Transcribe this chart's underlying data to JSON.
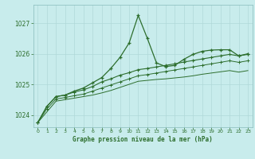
{
  "title": "Graphe pression niveau de la mer (hPa)",
  "bg_color": "#c8ecec",
  "grid_color": "#b0d8d8",
  "line_color": "#2d6e2d",
  "xlim": [
    -0.5,
    23.5
  ],
  "ylim": [
    1023.6,
    1027.6
  ],
  "yticks": [
    1024,
    1025,
    1026,
    1027
  ],
  "xticks": [
    0,
    1,
    2,
    3,
    4,
    5,
    6,
    7,
    8,
    9,
    10,
    11,
    12,
    13,
    14,
    15,
    16,
    17,
    18,
    19,
    20,
    21,
    22,
    23
  ],
  "line1_x": [
    0,
    1,
    2,
    3,
    4,
    5,
    6,
    7,
    8,
    9,
    10,
    11,
    12,
    13,
    14,
    15,
    16,
    17,
    18,
    19,
    20,
    21,
    22,
    23
  ],
  "line1_y": [
    1023.75,
    1024.28,
    1024.6,
    1024.65,
    1024.78,
    1024.88,
    1025.05,
    1025.22,
    1025.52,
    1025.88,
    1026.35,
    1027.25,
    1026.5,
    1025.7,
    1025.58,
    1025.62,
    1025.82,
    1025.98,
    1026.08,
    1026.12,
    1026.13,
    1026.13,
    1025.93,
    1026.0
  ],
  "line2_x": [
    0,
    1,
    2,
    3,
    4,
    5,
    6,
    7,
    8,
    9,
    10,
    11,
    12,
    13,
    14,
    15,
    16,
    17,
    18,
    19,
    20,
    21,
    22,
    23
  ],
  "line2_y": [
    1023.75,
    1024.28,
    1024.6,
    1024.65,
    1024.75,
    1024.82,
    1024.93,
    1025.08,
    1025.18,
    1025.3,
    1025.38,
    1025.48,
    1025.52,
    1025.57,
    1025.62,
    1025.67,
    1025.73,
    1025.78,
    1025.83,
    1025.88,
    1025.93,
    1025.98,
    1025.93,
    1025.98
  ],
  "line3_x": [
    0,
    1,
    2,
    3,
    4,
    5,
    6,
    7,
    8,
    9,
    10,
    11,
    12,
    13,
    14,
    15,
    16,
    17,
    18,
    19,
    20,
    21,
    22,
    23
  ],
  "line3_y": [
    1023.75,
    1024.2,
    1024.52,
    1024.57,
    1024.63,
    1024.68,
    1024.78,
    1024.88,
    1024.98,
    1025.08,
    1025.18,
    1025.28,
    1025.32,
    1025.37,
    1025.42,
    1025.47,
    1025.52,
    1025.57,
    1025.62,
    1025.67,
    1025.72,
    1025.77,
    1025.72,
    1025.77
  ],
  "line4_x": [
    0,
    1,
    2,
    3,
    4,
    5,
    6,
    7,
    8,
    9,
    10,
    11,
    12,
    13,
    14,
    15,
    16,
    17,
    18,
    19,
    20,
    21,
    22,
    23
  ],
  "line4_y": [
    1023.75,
    1024.1,
    1024.45,
    1024.5,
    1024.55,
    1024.6,
    1024.65,
    1024.72,
    1024.8,
    1024.9,
    1025.0,
    1025.1,
    1025.13,
    1025.16,
    1025.18,
    1025.21,
    1025.24,
    1025.28,
    1025.33,
    1025.37,
    1025.41,
    1025.45,
    1025.4,
    1025.45
  ]
}
